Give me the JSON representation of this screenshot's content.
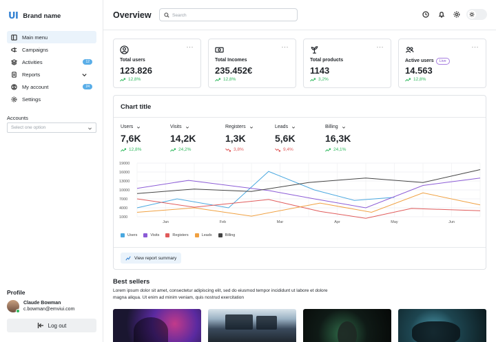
{
  "brand": {
    "logo": "UI",
    "name": "Brand name"
  },
  "sidebar": {
    "items": [
      {
        "label": "Main menu",
        "icon": "layout-icon",
        "active": true
      },
      {
        "label": "Campaigns",
        "icon": "megaphone-icon"
      },
      {
        "label": "Activities",
        "icon": "layers-icon",
        "badge": "12"
      },
      {
        "label": "Reports",
        "icon": "report-icon",
        "chevron": true
      },
      {
        "label": "My account",
        "icon": "user-circle-icon",
        "badge": "24"
      },
      {
        "label": "Settings",
        "icon": "gear-icon"
      }
    ],
    "accounts_label": "Accounts",
    "accounts_placeholder": "Select one option"
  },
  "profile": {
    "label": "Profile",
    "name": "Claude Bowman",
    "email": "c.bowman@emviui.com",
    "logout_label": "Log out"
  },
  "header": {
    "title": "Overview",
    "search_placeholder": "Search"
  },
  "stats": [
    {
      "label": "Total users",
      "value": "123.826",
      "trend": "12,8%",
      "icon": "user-icon"
    },
    {
      "label": "Total Incomes",
      "value": "235.452€",
      "trend": "12,8%",
      "icon": "banknote-icon"
    },
    {
      "label": "Total products",
      "value": "1143",
      "trend": "3,2%",
      "icon": "plant-icon"
    },
    {
      "label": "Active users",
      "value": "14.563",
      "trend": "12,8%",
      "icon": "users-icon",
      "badge": "Live"
    }
  ],
  "chart": {
    "title": "Chart title",
    "kpis": [
      {
        "label": "Users",
        "value": "7,6K",
        "trend": "12,8%",
        "direction": "up"
      },
      {
        "label": "Visits",
        "value": "14,2K",
        "trend": "24,2%",
        "direction": "up"
      },
      {
        "label": "Registers",
        "value": "1,3K",
        "trend": "3,8%",
        "direction": "down"
      },
      {
        "label": "Leads",
        "value": "5,6K",
        "trend": "9,4%",
        "direction": "down"
      },
      {
        "label": "Billing",
        "value": "16,3K",
        "trend": "24,1%",
        "direction": "up"
      }
    ],
    "report_button": "View report summary"
  },
  "chart_data": {
    "type": "line",
    "title": "Chart title",
    "xlabel": "",
    "ylabel": "",
    "categories": [
      "Jan",
      "Feb",
      "Mar",
      "Apr",
      "May",
      "Jun"
    ],
    "x_points": [
      0,
      0.5,
      1,
      1.5,
      2,
      2.5,
      3,
      3.5,
      4,
      4.5,
      5,
      5.5,
      6
    ],
    "yticks": [
      1000,
      4000,
      7000,
      10000,
      13000,
      16000,
      19000
    ],
    "ylim": [
      1000,
      19000
    ],
    "grid": true,
    "legend": "bottom-left",
    "series": [
      {
        "name": "Users",
        "color": "#4aa8e0",
        "values": [
          [
            0,
            4000
          ],
          [
            1.4,
            7000
          ],
          [
            3.2,
            4000
          ],
          [
            4.6,
            16200
          ],
          [
            6.2,
            10000
          ],
          [
            7.6,
            6500
          ],
          [
            9,
            7500
          ]
        ]
      },
      {
        "name": "Visits",
        "color": "#8b5bd6",
        "values": [
          [
            0,
            10500
          ],
          [
            1.8,
            13200
          ],
          [
            4.6,
            9800
          ],
          [
            6.2,
            7000
          ],
          [
            8,
            4000
          ],
          [
            10,
            11500
          ],
          [
            12,
            14000
          ]
        ]
      },
      {
        "name": "Registers",
        "color": "#e05a5a",
        "values": [
          [
            0,
            7000
          ],
          [
            2,
            4200
          ],
          [
            4.6,
            6800
          ],
          [
            6.4,
            2800
          ],
          [
            8,
            500
          ],
          [
            9.6,
            3800
          ],
          [
            12,
            3000
          ]
        ]
      },
      {
        "name": "Leads",
        "color": "#f0a040",
        "values": [
          [
            0,
            2500
          ],
          [
            2,
            4000
          ],
          [
            4,
            1200
          ],
          [
            6.4,
            5600
          ],
          [
            8.2,
            2500
          ],
          [
            10,
            9000
          ],
          [
            12,
            5000
          ]
        ]
      },
      {
        "name": "Billing",
        "color": "#444444",
        "values": [
          [
            0,
            8800
          ],
          [
            2,
            10300
          ],
          [
            4,
            9500
          ],
          [
            6,
            12500
          ],
          [
            8,
            14000
          ],
          [
            10,
            12500
          ],
          [
            12,
            16800
          ]
        ]
      }
    ]
  },
  "best_sellers": {
    "title": "Best sellers",
    "description": "Lorem ipsum dolor sit amet, consectetur adipiscing elit, sed do eiusmod tempor incididunt ut labore et dolore magna aliqua. Ut enim ad minim veniam, quis nostrud exercitation"
  }
}
